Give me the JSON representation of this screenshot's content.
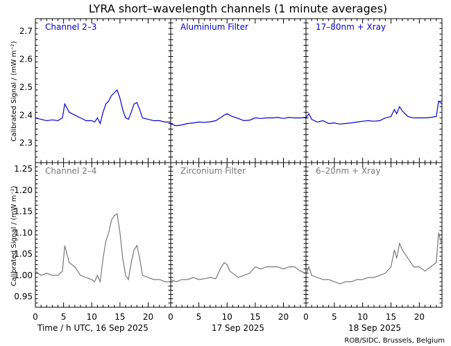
{
  "title": "LYRA short–wavelength channels (1 minute averages)",
  "credit": "ROB/SIDC, Brussels, Belgium",
  "colors": {
    "top_series": "#0000cc",
    "bottom_series": "#777777",
    "axes": "#000000",
    "background": "#ffffff"
  },
  "chart_data": [
    {
      "type": "line",
      "row": "top",
      "ylabel": "Calibrated Signal / (mW m⁻²)",
      "ylim": [
        2.23,
        2.745
      ],
      "yticks": [
        2.3,
        2.4,
        2.5,
        2.6,
        2.7
      ],
      "ytick_labels": [
        "2.3",
        "2.4",
        "2.5",
        "2.6",
        "2.7"
      ],
      "panels": [
        {
          "label": "Channel 2–3",
          "x": [
            0,
            1,
            2,
            3,
            4,
            4.8,
            5.2,
            6,
            7,
            8,
            9,
            10,
            10.5,
            11,
            11.5,
            12,
            12.5,
            13,
            13.5,
            14,
            14.5,
            15,
            15.5,
            16,
            16.5,
            17,
            17.5,
            18,
            18.5,
            19,
            20,
            21,
            22,
            23,
            24
          ],
          "y": [
            2.39,
            2.385,
            2.38,
            2.383,
            2.38,
            2.39,
            2.44,
            2.41,
            2.4,
            2.39,
            2.38,
            2.38,
            2.375,
            2.39,
            2.37,
            2.41,
            2.44,
            2.45,
            2.47,
            2.48,
            2.49,
            2.46,
            2.42,
            2.39,
            2.385,
            2.41,
            2.44,
            2.445,
            2.42,
            2.39,
            2.385,
            2.38,
            2.38,
            2.375,
            2.375
          ]
        },
        {
          "label": "Aluminium Filter",
          "x": [
            0,
            1,
            2,
            3,
            4,
            5,
            6,
            7,
            8,
            9,
            9.5,
            10,
            10.5,
            11,
            12,
            13,
            14,
            15,
            16,
            17,
            18,
            19,
            20,
            21,
            22,
            23,
            24
          ],
          "y": [
            2.368,
            2.362,
            2.365,
            2.37,
            2.372,
            2.375,
            2.374,
            2.376,
            2.38,
            2.393,
            2.4,
            2.405,
            2.399,
            2.395,
            2.388,
            2.38,
            2.382,
            2.39,
            2.388,
            2.39,
            2.39,
            2.392,
            2.388,
            2.392,
            2.39,
            2.39,
            2.392
          ]
        },
        {
          "label": "17–80nm + Xray",
          "x": [
            0,
            0.5,
            1,
            2,
            3,
            4,
            5,
            6,
            7,
            8,
            9,
            10,
            11,
            12,
            13,
            14,
            15,
            15.6,
            16,
            16.5,
            17,
            18,
            19,
            20,
            21,
            22,
            23,
            23.4,
            24
          ],
          "y": [
            2.39,
            2.405,
            2.385,
            2.375,
            2.38,
            2.37,
            2.372,
            2.368,
            2.37,
            2.372,
            2.375,
            2.378,
            2.38,
            2.378,
            2.38,
            2.39,
            2.395,
            2.42,
            2.405,
            2.43,
            2.415,
            2.395,
            2.39,
            2.39,
            2.39,
            2.392,
            2.395,
            2.45,
            2.44
          ]
        }
      ]
    },
    {
      "type": "line",
      "row": "bottom",
      "ylabel": "Calibrated Signal / (mW m⁻²)",
      "ylim": [
        0.925,
        1.265
      ],
      "yticks": [
        0.95,
        1.0,
        1.05,
        1.1,
        1.15,
        1.2,
        1.25
      ],
      "ytick_labels": [
        "0.95",
        "1.00",
        "1.05",
        "1.10",
        "1.15",
        "1.20",
        "1.25"
      ],
      "panels": [
        {
          "label": "Channel 2–4",
          "x": [
            0,
            1,
            2,
            3,
            4,
            4.8,
            5.2,
            6,
            7,
            8,
            9,
            10,
            10.5,
            11,
            11.5,
            12,
            12.5,
            13,
            13.5,
            14,
            14.5,
            15,
            15.5,
            16,
            16.5,
            17,
            17.5,
            18,
            18.5,
            19,
            20,
            21,
            22,
            23,
            24
          ],
          "y": [
            1.01,
            1.0,
            1.005,
            1.0,
            1.0,
            1.01,
            1.07,
            1.03,
            1.02,
            1.0,
            0.995,
            0.99,
            0.985,
            1.0,
            0.985,
            1.04,
            1.08,
            1.1,
            1.13,
            1.14,
            1.145,
            1.1,
            1.04,
            1.0,
            0.99,
            1.03,
            1.06,
            1.07,
            1.04,
            1.0,
            0.995,
            0.99,
            0.99,
            0.985,
            0.985
          ]
        },
        {
          "label": "Zirconium Filter",
          "x": [
            0,
            1,
            2,
            3,
            4,
            5,
            6,
            7,
            8,
            9,
            9.5,
            10,
            10.5,
            11,
            12,
            13,
            14,
            15,
            16,
            17,
            18,
            19,
            20,
            21,
            22,
            23,
            24
          ],
          "y": [
            0.99,
            0.985,
            0.99,
            0.99,
            0.995,
            0.99,
            0.992,
            0.995,
            0.992,
            1.02,
            1.03,
            1.025,
            1.01,
            1.005,
            0.995,
            1.0,
            1.005,
            1.02,
            1.015,
            1.02,
            1.02,
            1.02,
            1.015,
            1.02,
            1.02,
            1.01,
            1.005
          ]
        },
        {
          "label": "6–20nm + Xray",
          "x": [
            0,
            0.5,
            1,
            2,
            3,
            4,
            5,
            6,
            7,
            8,
            9,
            10,
            11,
            12,
            13,
            14,
            15,
            15.6,
            16,
            16.5,
            17,
            18,
            19,
            20,
            21,
            22,
            23,
            23.4,
            24
          ],
          "y": [
            1.0,
            1.02,
            1.0,
            0.995,
            0.99,
            0.99,
            0.985,
            0.98,
            0.985,
            0.985,
            0.99,
            0.99,
            0.995,
            0.995,
            1.0,
            1.005,
            1.02,
            1.06,
            1.04,
            1.075,
            1.06,
            1.04,
            1.02,
            1.02,
            1.01,
            1.02,
            1.03,
            1.1,
            1.07
          ]
        }
      ]
    }
  ],
  "x_axis": {
    "xlim": [
      0,
      24
    ],
    "ticks": [
      0,
      5,
      10,
      15,
      20
    ],
    "tick_labels": [
      "0",
      "5",
      "10",
      "15",
      "20"
    ],
    "day_labels": [
      "Time / h UTC, 16 Sep 2025",
      "17 Sep 2025",
      "18 Sep 2025"
    ]
  }
}
